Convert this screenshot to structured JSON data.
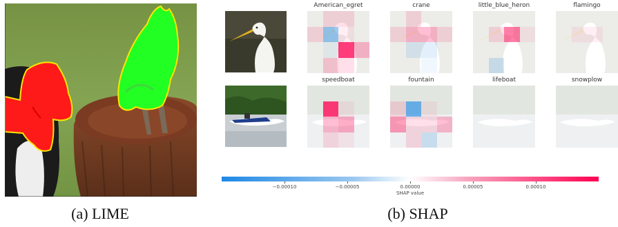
{
  "captions": {
    "lime": "(a) LIME",
    "shap": "(b) SHAP"
  },
  "shap": {
    "rows": [
      {
        "image": "egret-photo",
        "classes": [
          "American_egret",
          "crane",
          "little_blue_heron",
          "flamingo"
        ]
      },
      {
        "image": "speedboat-photo",
        "classes": [
          "speedboat",
          "fountain",
          "lifeboat",
          "snowplow"
        ]
      }
    ],
    "colorbar": {
      "ticks": [
        "−0.00010",
        "−0.00005",
        "0.00000",
        "0.00005",
        "0.00010"
      ],
      "label": "SHAP value",
      "negative_color": "#1e88e5",
      "positive_color": "#ff0052"
    }
  },
  "chart_data": {
    "type": "heatmap",
    "grid": [
      4,
      4
    ],
    "vmin": -0.00015,
    "vmax": 0.00015,
    "ticks": [
      -0.0001,
      -5e-05,
      0,
      5e-05,
      0.0001
    ],
    "colorbar_label": "SHAP value",
    "maps": [
      {
        "class": "American_egret",
        "values": [
          [
            0,
            2e-05,
            2e-05,
            0
          ],
          [
            2e-05,
            -7e-05,
            1e-05,
            0
          ],
          [
            0,
            -1e-05,
            0.00012,
            4e-05
          ],
          [
            0,
            3e-05,
            2e-05,
            0
          ]
        ]
      },
      {
        "class": "crane",
        "values": [
          [
            0,
            2e-05,
            0,
            0
          ],
          [
            2e-05,
            4e-05,
            4e-05,
            2e-05
          ],
          [
            0,
            -2e-05,
            -2e-05,
            0
          ],
          [
            0,
            0,
            -1e-05,
            0
          ]
        ]
      },
      {
        "class": "little_blue_heron",
        "values": [
          [
            0,
            0,
            0,
            0
          ],
          [
            0,
            2e-05,
            8e-05,
            1e-05
          ],
          [
            0,
            0,
            0,
            0
          ],
          [
            0,
            -3e-05,
            0,
            0
          ]
        ]
      },
      {
        "class": "flamingo",
        "values": [
          [
            0,
            0,
            0,
            0
          ],
          [
            0,
            1e-05,
            1e-05,
            0
          ],
          [
            0,
            0,
            0,
            0
          ],
          [
            0,
            0,
            0,
            0
          ]
        ]
      },
      {
        "class": "speedboat",
        "values": [
          [
            0,
            0,
            0,
            0
          ],
          [
            0,
            0.00012,
            1e-05,
            0
          ],
          [
            0,
            4e-05,
            5e-05,
            0
          ],
          [
            0,
            2e-05,
            1e-05,
            0
          ]
        ]
      },
      {
        "class": "fountain",
        "values": [
          [
            0,
            0,
            0,
            0
          ],
          [
            2e-05,
            -0.0001,
            1e-05,
            0
          ],
          [
            6e-05,
            2e-05,
            2e-05,
            4e-05
          ],
          [
            0,
            2e-05,
            -3e-05,
            0
          ]
        ]
      },
      {
        "class": "lifeboat",
        "values": [
          [
            0,
            0,
            0,
            0
          ],
          [
            0,
            0,
            0,
            0
          ],
          [
            0,
            0,
            0,
            0
          ],
          [
            0,
            0,
            0,
            0
          ]
        ]
      },
      {
        "class": "snowplow",
        "values": [
          [
            0,
            0,
            0,
            0
          ],
          [
            0,
            0,
            0,
            0
          ],
          [
            0,
            0,
            0,
            0
          ],
          [
            0,
            0,
            0,
            0
          ]
        ]
      }
    ]
  }
}
